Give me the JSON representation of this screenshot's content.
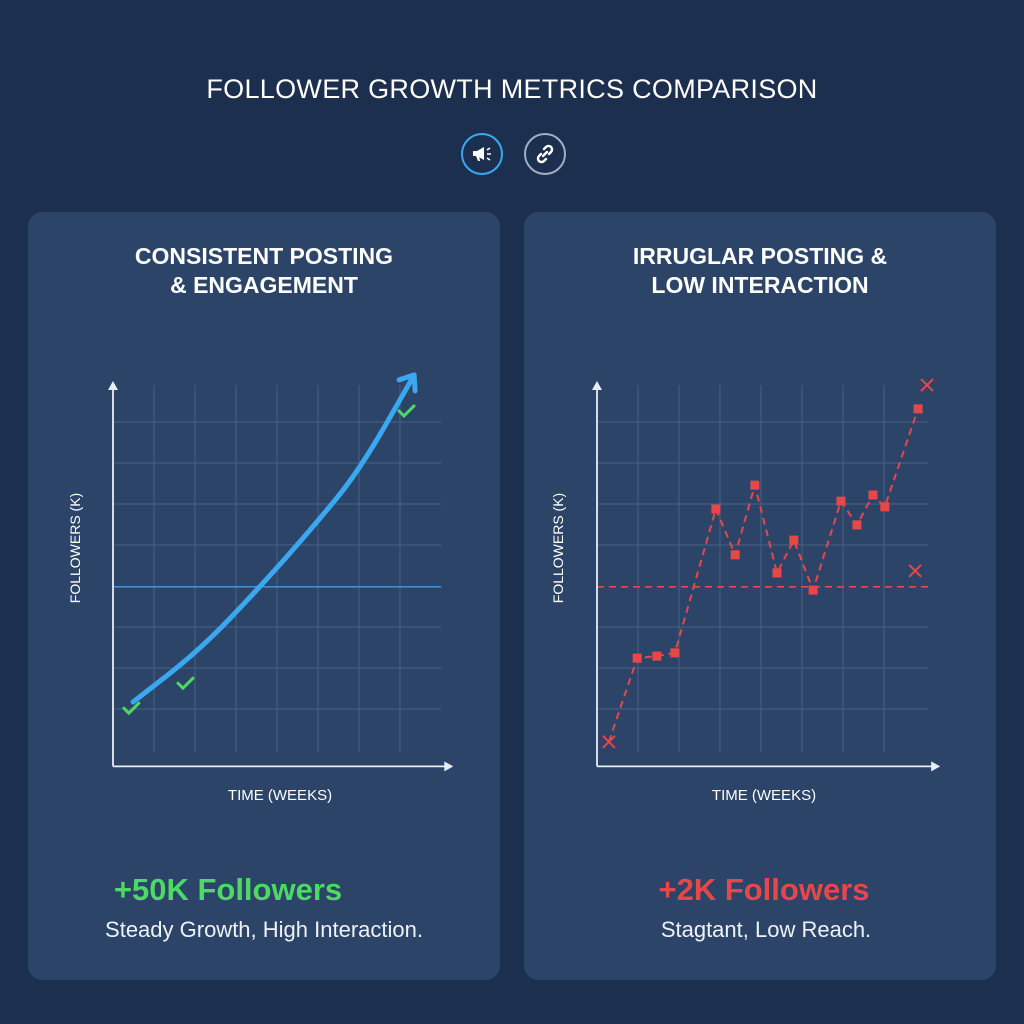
{
  "title": "FOLLOWER GROWTH METRICS COMPARISON",
  "icons": [
    "megaphone-icon",
    "link-icon"
  ],
  "colors": {
    "background": "#1d2f4f",
    "panel": "#2c4468",
    "growth": "#3aa8f0",
    "positive": "#4cd964",
    "negative": "#e8474a"
  },
  "panels": [
    {
      "title_line1": "CONSISTENT POSTING",
      "title_line2": "& ENGAGEMENT",
      "stat": "+50K Followers",
      "summary": "Steady Growth, High Interaction."
    },
    {
      "title_line1": "IRRUGLAR POSTING &",
      "title_line2": "LOW INTERACTION",
      "stat": "+2K Followers",
      "summary": "Stagtant, Low Reach."
    }
  ],
  "chart_data": [
    {
      "type": "line",
      "title": "CONSISTENT POSTING & ENGAGEMENT",
      "xlabel": "TIME (WEEKS)",
      "ylabel": "FOLLOWERS (K)",
      "xlim": [
        0,
        8.3
      ],
      "ylim": [
        -0.4,
        9
      ],
      "grid": true,
      "baseline": 3.98,
      "series": [
        {
          "name": "growth",
          "style": "solid-arrow",
          "x": [
            0.49,
            2.12,
            3.59,
            4.88,
            6.02,
            7.32
          ],
          "y": [
            1.17,
            2.44,
            3.98,
            5.44,
            6.83,
            9.1
          ]
        }
      ],
      "markers": [
        {
          "kind": "check",
          "x": 0.46,
          "y": 1.02
        },
        {
          "kind": "check",
          "x": 1.78,
          "y": 1.63
        },
        {
          "kind": "check",
          "x": 7.17,
          "y": 8.27
        }
      ]
    },
    {
      "type": "line",
      "title": "IRRUGLAR POSTING & LOW INTERACTION",
      "xlabel": "TIME (WEEKS)",
      "ylabel": "FOLLOWERS (K)",
      "xlim": [
        0,
        8.37
      ],
      "ylim": [
        -0.4,
        9
      ],
      "grid": true,
      "baseline": 3.98,
      "series": [
        {
          "name": "irregular",
          "style": "dashed-squares",
          "x": [
            0.29,
            0.98,
            1.46,
            1.9,
            2.9,
            3.37,
            3.85,
            4.39,
            4.8,
            5.27,
            5.95,
            6.34,
            6.73,
            7.02,
            7.83
          ],
          "y": [
            0.2,
            2.24,
            2.29,
            2.37,
            5.88,
            4.76,
            6.46,
            4.32,
            5.12,
            3.9,
            6.07,
            5.49,
            6.22,
            5.93,
            8.32
          ]
        }
      ],
      "markers": [
        {
          "kind": "cross",
          "x": 0.29,
          "y": 0.2
        },
        {
          "kind": "cross",
          "x": 8.05,
          "y": 8.9
        },
        {
          "kind": "cross",
          "x": 7.76,
          "y": 4.37
        }
      ]
    }
  ]
}
